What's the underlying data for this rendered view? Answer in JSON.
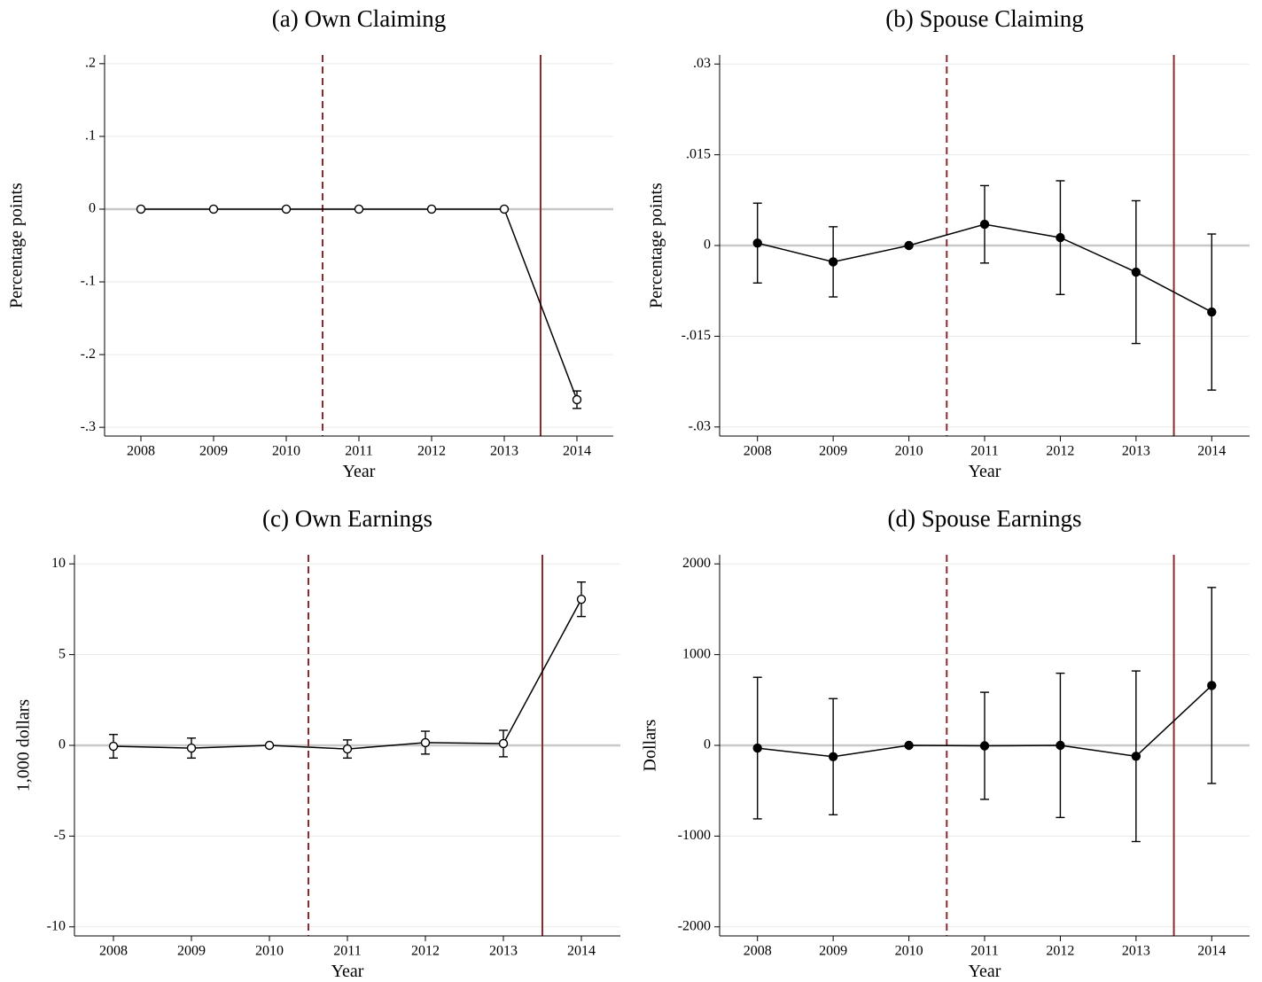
{
  "chart_data": [
    {
      "type": "line",
      "title": "(a) Own Claiming",
      "xlabel": "Year",
      "ylabel": "Percentage points",
      "x": [
        2008,
        2009,
        2010,
        2011,
        2012,
        2013,
        2014
      ],
      "values": [
        0,
        0,
        0,
        0,
        0,
        0,
        -0.262
      ],
      "errors": [
        0,
        0,
        0,
        0,
        0,
        0,
        0.012
      ],
      "xlim": [
        2007.5,
        2014.5
      ],
      "xticks": [
        2008,
        2009,
        2010,
        2011,
        2012,
        2013,
        2014
      ],
      "ylim": [
        -0.312,
        0.212
      ],
      "yticks": [
        {
          "value": 0.2,
          "label": ".2"
        },
        {
          "value": 0.1,
          "label": ".1"
        },
        0,
        {
          "value": -0.1,
          "label": "-.1"
        },
        {
          "value": -0.2,
          "label": "-.2"
        },
        {
          "value": -0.3,
          "label": "-.3"
        }
      ],
      "grid": true,
      "zero_line": true,
      "color": "#000000",
      "marker_fill": "#ffffff",
      "vlines": [
        {
          "x": 2010.5,
          "style": "dashed",
          "color": "#8b2a2f"
        },
        {
          "x": 2013.5,
          "style": "solid",
          "color": "#8b2a2f"
        }
      ]
    },
    {
      "type": "line",
      "title": "(b) Spouse Claiming",
      "xlabel": "Year",
      "ylabel": "Percentage points",
      "x": [
        2008,
        2009,
        2010,
        2011,
        2012,
        2013,
        2014
      ],
      "values": [
        0.0004,
        -0.0027,
        0,
        0.0035,
        0.0013,
        -0.0044,
        -0.011
      ],
      "errors": [
        0.0066,
        0.0058,
        0,
        0.0064,
        0.0094,
        0.0118,
        0.0129
      ],
      "xlim": [
        2007.5,
        2014.5
      ],
      "xticks": [
        2008,
        2009,
        2010,
        2011,
        2012,
        2013,
        2014
      ],
      "ylim": [
        -0.0315,
        0.0315
      ],
      "yticks": [
        {
          "value": 0.03,
          "label": ".03"
        },
        {
          "value": 0.015,
          "label": ".015"
        },
        0,
        {
          "value": -0.015,
          "label": "-.015"
        },
        {
          "value": -0.03,
          "label": "-.03"
        }
      ],
      "grid": true,
      "zero_line": true,
      "color": "#000000",
      "marker_fill": "#000000",
      "vlines": [
        {
          "x": 2010.5,
          "style": "dashed",
          "color": "#8b2a2f"
        },
        {
          "x": 2013.5,
          "style": "solid",
          "color": "#8b2a2f"
        }
      ]
    },
    {
      "type": "line",
      "title": "(c) Own Earnings",
      "xlabel": "Year",
      "ylabel": "1,000 dollars",
      "x": [
        2008,
        2009,
        2010,
        2011,
        2012,
        2013,
        2014
      ],
      "values": [
        -0.05,
        -0.15,
        0,
        -0.2,
        0.15,
        0.1,
        8.05
      ],
      "errors": [
        0.65,
        0.55,
        0,
        0.5,
        0.63,
        0.73,
        0.95
      ],
      "xlim": [
        2007.5,
        2014.5
      ],
      "xticks": [
        2008,
        2009,
        2010,
        2011,
        2012,
        2013,
        2014
      ],
      "ylim": [
        -10.5,
        10.5
      ],
      "yticks": [
        10,
        5,
        0,
        -5,
        -10
      ],
      "grid": true,
      "zero_line": true,
      "color": "#000000",
      "marker_fill": "#ffffff",
      "vlines": [
        {
          "x": 2010.5,
          "style": "dashed",
          "color": "#8b2a2f"
        },
        {
          "x": 2013.5,
          "style": "solid",
          "color": "#8b2a2f"
        }
      ]
    },
    {
      "type": "line",
      "title": "(d) Spouse Earnings",
      "xlabel": "Year",
      "ylabel": "Dollars",
      "x": [
        2008,
        2009,
        2010,
        2011,
        2012,
        2013,
        2014
      ],
      "values": [
        -30,
        -125,
        0,
        -5,
        0,
        -120,
        660
      ],
      "errors": [
        780,
        640,
        0,
        590,
        795,
        940,
        1080
      ],
      "xlim": [
        2007.5,
        2014.5
      ],
      "xticks": [
        2008,
        2009,
        2010,
        2011,
        2012,
        2013,
        2014
      ],
      "ylim": [
        -2100,
        2100
      ],
      "yticks": [
        2000,
        1000,
        0,
        -1000,
        -2000
      ],
      "grid": true,
      "zero_line": true,
      "color": "#000000",
      "marker_fill": "#000000",
      "vlines": [
        {
          "x": 2010.5,
          "style": "dashed",
          "color": "#8b2a2f"
        },
        {
          "x": 2013.5,
          "style": "solid",
          "color": "#8b2a2f"
        }
      ]
    }
  ]
}
